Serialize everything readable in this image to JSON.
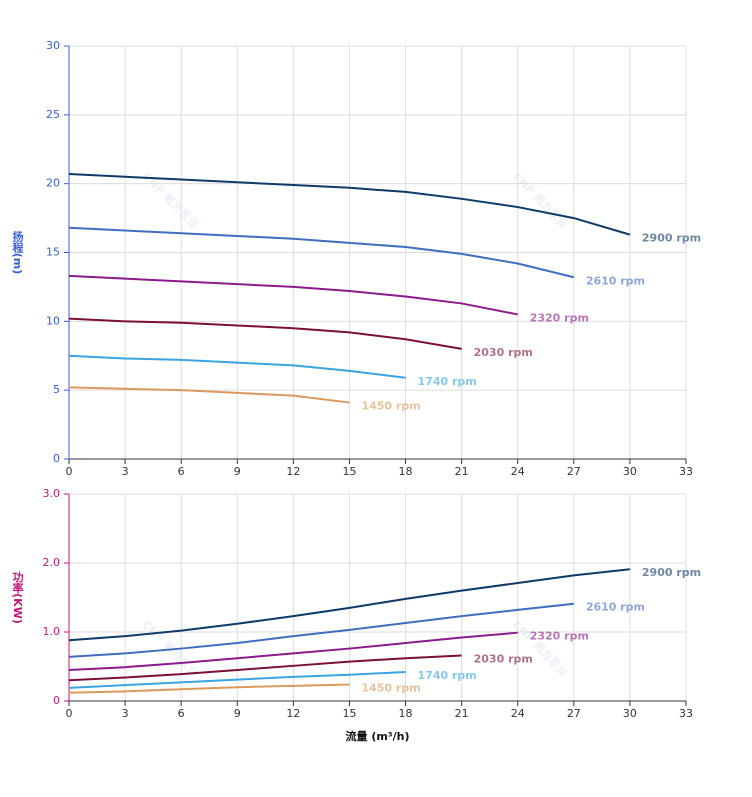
{
  "chart_data": [
    {
      "type": "line",
      "y_label": "扬程(m)",
      "axis_color": "#3a5fcd",
      "watermark": "CNP 南方泵业",
      "grid": true,
      "xlim": [
        0,
        33
      ],
      "xticks": [
        0,
        3,
        6,
        9,
        12,
        15,
        18,
        21,
        24,
        27,
        30,
        33
      ],
      "ylim": [
        0,
        30
      ],
      "yticks": [
        0,
        5,
        10,
        15,
        20,
        25,
        30
      ],
      "series": [
        {
          "name": "2900 rpm",
          "color": "#0d3a66",
          "x": [
            0,
            3,
            6,
            9,
            12,
            15,
            18,
            21,
            24,
            27,
            30
          ],
          "values": [
            20.7,
            20.5,
            20.3,
            20.1,
            19.9,
            19.7,
            19.4,
            18.9,
            18.3,
            17.5,
            16.3
          ]
        },
        {
          "name": "2610 rpm",
          "color": "#3f6dbf",
          "x": [
            0,
            3,
            6,
            9,
            12,
            15,
            18,
            21,
            24,
            27
          ],
          "values": [
            16.8,
            16.6,
            16.4,
            16.2,
            16.0,
            15.7,
            15.4,
            14.9,
            14.2,
            13.2
          ]
        },
        {
          "name": "2320 rpm",
          "color": "#8b1a8b",
          "x": [
            0,
            3,
            6,
            9,
            12,
            15,
            18,
            21,
            24
          ],
          "values": [
            13.3,
            13.1,
            12.9,
            12.7,
            12.5,
            12.2,
            11.8,
            11.3,
            10.5
          ]
        },
        {
          "name": "2030 rpm",
          "color": "#7a0f3a",
          "x": [
            0,
            3,
            6,
            9,
            12,
            15,
            18,
            21
          ],
          "values": [
            10.2,
            10.0,
            9.9,
            9.7,
            9.5,
            9.2,
            8.7,
            8.0
          ]
        },
        {
          "name": "1740 rpm",
          "color": "#3aa3e0",
          "x": [
            0,
            3,
            6,
            9,
            12,
            15,
            18
          ],
          "values": [
            7.5,
            7.3,
            7.2,
            7.0,
            6.8,
            6.4,
            5.9
          ]
        },
        {
          "name": "1450 rpm",
          "color": "#d99a5c",
          "x": [
            0,
            3,
            6,
            9,
            12,
            15
          ],
          "values": [
            5.2,
            5.1,
            5.0,
            4.8,
            4.6,
            4.1
          ]
        }
      ]
    },
    {
      "type": "line",
      "y_label": "功率(KW)",
      "x_label": "流量 (m³/h)",
      "axis_color": "#c0187a",
      "watermark": "CNP 南方泵业",
      "grid": true,
      "xlim": [
        0,
        33
      ],
      "xticks": [
        0,
        3,
        6,
        9,
        12,
        15,
        18,
        21,
        24,
        27,
        30,
        33
      ],
      "ylim": [
        0,
        3
      ],
      "yticks": [
        0,
        {
          "value": 1,
          "label": "1.0"
        },
        {
          "value": 2,
          "label": "2.0"
        },
        {
          "value": 3,
          "label": "3.0"
        }
      ],
      "series": [
        {
          "name": "2900 rpm",
          "color": "#0d3a66",
          "x": [
            0,
            3,
            6,
            9,
            12,
            15,
            18,
            21,
            24,
            27,
            30
          ],
          "values": [
            0.88,
            0.94,
            1.02,
            1.12,
            1.23,
            1.35,
            1.48,
            1.6,
            1.71,
            1.82,
            1.91
          ]
        },
        {
          "name": "2610 rpm",
          "color": "#3f6dbf",
          "x": [
            0,
            3,
            6,
            9,
            12,
            15,
            18,
            21,
            24,
            27
          ],
          "values": [
            0.64,
            0.69,
            0.76,
            0.84,
            0.94,
            1.03,
            1.13,
            1.23,
            1.32,
            1.41
          ]
        },
        {
          "name": "2320 rpm",
          "color": "#8b1a8b",
          "x": [
            0,
            3,
            6,
            9,
            12,
            15,
            18,
            21,
            24
          ],
          "values": [
            0.45,
            0.49,
            0.55,
            0.62,
            0.69,
            0.76,
            0.84,
            0.92,
            0.99
          ]
        },
        {
          "name": "2030 rpm",
          "color": "#7a0f3a",
          "x": [
            0,
            3,
            6,
            9,
            12,
            15,
            18,
            21
          ],
          "values": [
            0.3,
            0.34,
            0.39,
            0.45,
            0.51,
            0.57,
            0.62,
            0.66
          ]
        },
        {
          "name": "1740 rpm",
          "color": "#3aa3e0",
          "x": [
            0,
            3,
            6,
            9,
            12,
            15,
            18
          ],
          "values": [
            0.19,
            0.23,
            0.27,
            0.31,
            0.35,
            0.38,
            0.42
          ]
        },
        {
          "name": "1450 rpm",
          "color": "#d99a5c",
          "x": [
            0,
            3,
            6,
            9,
            12,
            15
          ],
          "values": [
            0.12,
            0.14,
            0.17,
            0.2,
            0.22,
            0.24
          ]
        }
      ]
    }
  ]
}
